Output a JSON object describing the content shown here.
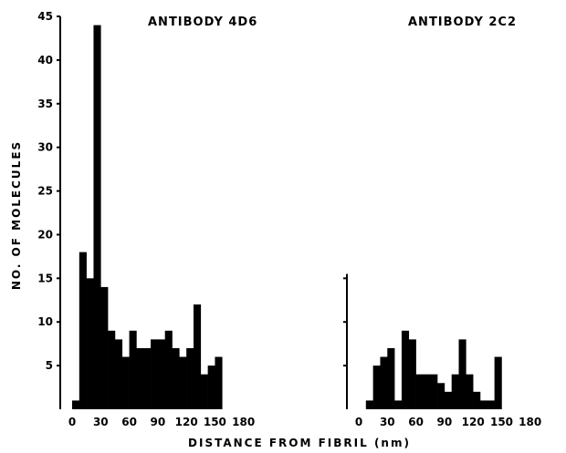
{
  "chart_data": {
    "type": "bar",
    "xlabel": "DISTANCE FROM FIBRIL (nm)",
    "ylabel": "NO. OF MOLECULES",
    "ylim": [
      0,
      45
    ],
    "yticks": [
      5,
      10,
      15,
      20,
      25,
      30,
      35,
      40,
      45
    ],
    "xlim": [
      -5,
      200
    ],
    "xticks": [
      0,
      30,
      60,
      90,
      120,
      150,
      180
    ],
    "grid": false,
    "panels": [
      {
        "title": "ANTIBODY 4D6",
        "bin_width": 7.5,
        "bin_starts": [
          0,
          7.5,
          15,
          22.5,
          30,
          37.5,
          45,
          52.5,
          60,
          67.5,
          75,
          82.5,
          90,
          97.5,
          105,
          112.5,
          120,
          127.5,
          135,
          142.5,
          150,
          157.5,
          165,
          172.5,
          180
        ],
        "values": [
          1,
          18,
          15,
          44,
          14,
          9,
          8,
          6,
          9,
          7,
          7,
          8,
          8,
          9,
          7,
          6,
          7,
          12,
          4,
          5,
          6,
          0,
          0,
          0,
          0
        ]
      },
      {
        "title": "ANTIBODY 2C2",
        "bin_width": 7.5,
        "bin_starts": [
          0,
          7.5,
          15,
          22.5,
          30,
          37.5,
          45,
          52.5,
          60,
          67.5,
          75,
          82.5,
          90,
          97.5,
          105,
          112.5,
          120,
          127.5,
          135,
          142.5,
          150,
          157.5,
          165,
          172.5,
          180
        ],
        "values": [
          0,
          1,
          5,
          6,
          7,
          1,
          9,
          8,
          4,
          4,
          4,
          3,
          2,
          4,
          8,
          4,
          2,
          1,
          1,
          6,
          0,
          0,
          0,
          0,
          0
        ]
      }
    ]
  }
}
